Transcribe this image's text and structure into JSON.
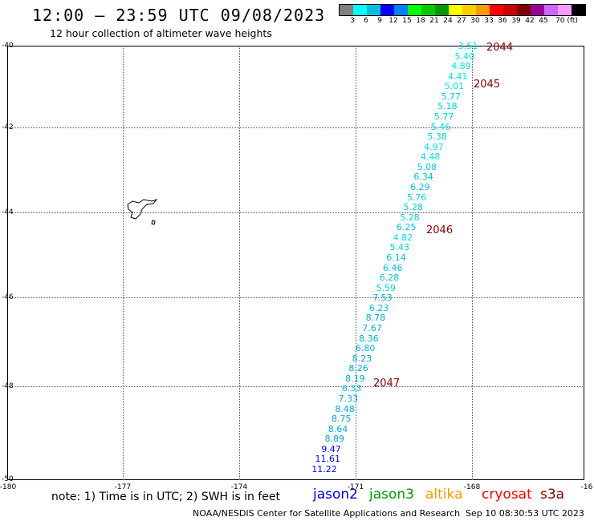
{
  "header": {
    "title": "12:00 – 23:59 UTC 09/08/2023",
    "subtitle": "12 hour collection of altimeter wave heights"
  },
  "color_scale": {
    "colors": [
      "#808080",
      "#00ffff",
      "#00c0e0",
      "#0000ff",
      "#0080ff",
      "#00ff00",
      "#00cc00",
      "#009900",
      "#ffff00",
      "#ffcc00",
      "#ff9900",
      "#ff0000",
      "#cc0000",
      "#800000",
      "#990099",
      "#cc66ff",
      "#ff99ff",
      "#000000"
    ],
    "labels": [
      "3",
      "6",
      "9",
      "12",
      "15",
      "18",
      "21",
      "24",
      "27",
      "30",
      "33",
      "36",
      "39",
      "42",
      "45",
      "70 (ft)"
    ]
  },
  "map": {
    "y_ticks": [
      "-40",
      "-42",
      "-44",
      "-46",
      "-48",
      "-50"
    ],
    "x_ticks": [
      "-180",
      "-177",
      "-174",
      "-171",
      "-168",
      "-16"
    ]
  },
  "wave_heights": [
    {
      "v": "3.51",
      "c": "#00e0f0"
    },
    {
      "v": "5.40",
      "c": "#00e0f0"
    },
    {
      "v": "4.89",
      "c": "#00e0f0"
    },
    {
      "v": "4.41",
      "c": "#00e0f0"
    },
    {
      "v": "5.01",
      "c": "#00e0f0"
    },
    {
      "v": "5.77",
      "c": "#00d0e8"
    },
    {
      "v": "5.18",
      "c": "#00d0e8"
    },
    {
      "v": "5.77",
      "c": "#00d0e8"
    },
    {
      "v": "5.46",
      "c": "#00d0e8"
    },
    {
      "v": "5.38",
      "c": "#00d0e8"
    },
    {
      "v": "4.97",
      "c": "#00e0f0"
    },
    {
      "v": "4.48",
      "c": "#00e0f0"
    },
    {
      "v": "5.08",
      "c": "#00d0e8"
    },
    {
      "v": "6.34",
      "c": "#00c0e0"
    },
    {
      "v": "6.29",
      "c": "#00c0e0"
    },
    {
      "v": "5.76",
      "c": "#00d0e8"
    },
    {
      "v": "5.28",
      "c": "#00d0e8"
    },
    {
      "v": "5.28",
      "c": "#00d0e8"
    },
    {
      "v": "6.25",
      "c": "#00c0e0"
    },
    {
      "v": "4.82",
      "c": "#00e0f0"
    },
    {
      "v": "5.43",
      "c": "#00d0e8"
    },
    {
      "v": "6.14",
      "c": "#00c0e0"
    },
    {
      "v": "6.46",
      "c": "#00c0e0"
    },
    {
      "v": "6.28",
      "c": "#00c0e0"
    },
    {
      "v": "5.59",
      "c": "#00d0e8"
    },
    {
      "v": "7.53",
      "c": "#00b0d8"
    },
    {
      "v": "6.23",
      "c": "#00c0e0"
    },
    {
      "v": "8.78",
      "c": "#00a8d8"
    },
    {
      "v": "7.67",
      "c": "#00b0d8"
    },
    {
      "v": "8.36",
      "c": "#00a8d8"
    },
    {
      "v": "6.80",
      "c": "#00b8e0"
    },
    {
      "v": "8.23",
      "c": "#00a8d8"
    },
    {
      "v": "8.26",
      "c": "#00a8d8"
    },
    {
      "v": "8.19",
      "c": "#00a8d8"
    },
    {
      "v": "6.33",
      "c": "#00c0e0"
    },
    {
      "v": "7.33",
      "c": "#00b0d8"
    },
    {
      "v": "8.48",
      "c": "#00a8d8"
    },
    {
      "v": "8.75",
      "c": "#00a8d8"
    },
    {
      "v": "8.64",
      "c": "#00a8d8"
    },
    {
      "v": "8.89",
      "c": "#00a8d8"
    },
    {
      "v": "9.47",
      "c": "#0000ff"
    },
    {
      "v": "11.61",
      "c": "#0000ff"
    },
    {
      "v": "11.22",
      "c": "#0000ff"
    }
  ],
  "cycle_labels": [
    "2044",
    "2045",
    "2046",
    "2047"
  ],
  "note": "note: 1) Time is in UTC; 2) SWH is in feet",
  "satellites": [
    {
      "name": "jason2",
      "color": "#0000cc"
    },
    {
      "name": "jason3",
      "color": "#009900"
    },
    {
      "name": "altika",
      "color": "#ff9900"
    },
    {
      "name": "cryosat",
      "color": "#ff0000"
    },
    {
      "name": "s3a",
      "color": "#8b0000"
    }
  ],
  "footer": {
    "credit": "NOAA/NESDIS Center for Satellite Applications and Research",
    "timestamp": "Sep 10 08:30:53 UTC 2023"
  }
}
